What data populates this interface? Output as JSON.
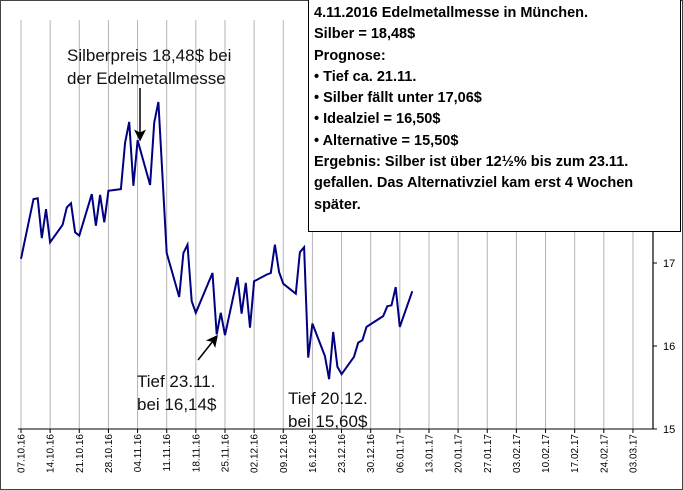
{
  "chart_data": {
    "type": "line",
    "title": "",
    "xlabel": "",
    "ylabel": "",
    "x_unit": "days since 07.10.16",
    "x_tick_labels": [
      "07.10.16",
      "14.10.16",
      "21.10.16",
      "28.10.16",
      "04.11.16",
      "11.11.16",
      "18.11.16",
      "25.11.16",
      "02.12.16",
      "09.12.16",
      "16.12.16",
      "23.12.16",
      "30.12.16",
      "06.01.17",
      "13.01.17",
      "20.01.17",
      "27.01.17",
      "03.02.17",
      "10.02.17",
      "17.02.17",
      "24.02.17",
      "03.03.17"
    ],
    "y_tick_labels": [
      "15",
      "16",
      "17"
    ],
    "ylim": [
      15,
      20
    ],
    "y_axis_side": "right",
    "grid": "vertical",
    "series": [
      {
        "name": "Silber",
        "color": "#000080",
        "x": [
          0,
          3,
          4,
          5,
          6,
          7,
          10,
          11,
          12,
          13,
          14,
          17,
          18,
          19,
          20,
          21,
          24,
          25,
          26,
          27,
          28,
          31,
          32,
          33,
          35,
          38,
          39,
          40,
          41,
          42,
          46,
          47,
          48,
          49,
          52,
          53,
          54,
          55,
          56,
          59,
          60,
          61,
          62,
          63,
          66,
          67,
          68,
          69,
          70,
          73,
          74,
          75,
          76,
          77,
          80,
          81,
          82,
          83,
          87,
          88,
          89,
          90,
          91,
          94
        ],
        "y": [
          17.05,
          17.77,
          17.78,
          17.3,
          17.65,
          17.25,
          17.46,
          17.67,
          17.72,
          17.37,
          17.33,
          17.83,
          17.45,
          17.82,
          17.49,
          17.87,
          17.89,
          18.45,
          18.7,
          17.93,
          18.48,
          17.94,
          18.69,
          18.94,
          17.12,
          16.59,
          17.12,
          17.22,
          16.54,
          16.4,
          16.88,
          16.14,
          16.4,
          16.13,
          16.83,
          16.39,
          16.76,
          16.22,
          16.78,
          16.86,
          16.88,
          17.22,
          16.89,
          16.75,
          16.63,
          17.13,
          17.19,
          15.86,
          16.27,
          15.88,
          15.6,
          16.17,
          15.75,
          15.66,
          15.87,
          16.04,
          16.07,
          16.23,
          16.36,
          16.48,
          16.49,
          16.71,
          16.23,
          16.66
        ]
      }
    ],
    "annotations": [
      {
        "lines": [
          "Silberpreis 18,48$ bei",
          "der Edelmetallmesse"
        ],
        "points_to_day": 28
      },
      {
        "lines": [
          "Tief 23.11.",
          "bei 16,14$"
        ],
        "points_to_day": 47
      },
      {
        "lines": [
          "Tief 20.12.",
          "bei 15,60$"
        ]
      }
    ]
  },
  "note_box": {
    "lines": [
      "4.11.2016 Edelmetallmesse in München.",
      "Silber =  18,48$",
      "Prognose:",
      "• Tief ca. 21.11.",
      "• Silber fällt unter 17,06$",
      "• Idealziel = 16,50$",
      "• Alternative = 15,50$",
      "Ergebnis: Silber ist über 12½% bis zum 23.11.",
      "gefallen. Das Alternativziel kam erst 4 Wochen",
      "später."
    ]
  }
}
